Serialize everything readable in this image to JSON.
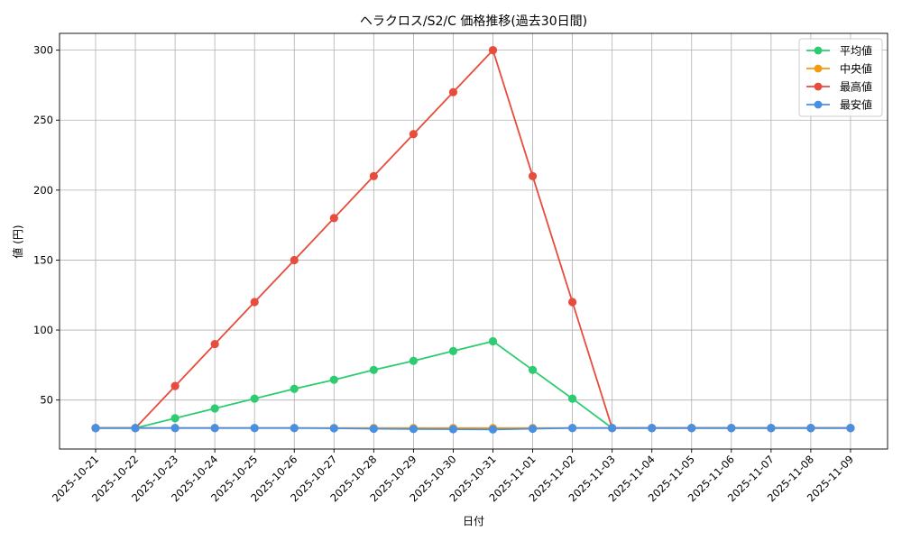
{
  "chart_data": {
    "type": "line",
    "title": "ヘラクロス/S2/C 価格推移(過去30日間)",
    "xlabel": "日付",
    "ylabel": "値 (円)",
    "ylim": [
      15,
      312
    ],
    "yticks": [
      50,
      100,
      150,
      200,
      250,
      300
    ],
    "grid": true,
    "legend_position": "top-right",
    "x": [
      "2025-10-21",
      "2025-10-22",
      "2025-10-23",
      "2025-10-24",
      "2025-10-25",
      "2025-10-26",
      "2025-10-27",
      "2025-10-28",
      "2025-10-29",
      "2025-10-30",
      "2025-10-31",
      "2025-11-01",
      "2025-11-02",
      "2025-11-03",
      "2025-11-04",
      "2025-11-05",
      "2025-11-06",
      "2025-11-07",
      "2025-11-08",
      "2025-11-09"
    ],
    "series": [
      {
        "name": "平均値",
        "color": "#2ecc71",
        "values": [
          30,
          30,
          37,
          44,
          51,
          58,
          64.5,
          71.5,
          78,
          85,
          92,
          71.5,
          51,
          30,
          30,
          30,
          30,
          30,
          30,
          30
        ]
      },
      {
        "name": "中央値",
        "color": "#f39c12",
        "values": [
          30,
          30,
          30,
          30,
          30,
          30,
          30,
          30,
          30,
          30,
          30,
          30,
          30,
          30,
          30,
          30,
          30,
          30,
          30,
          30
        ]
      },
      {
        "name": "最高値",
        "color": "#e74c3c",
        "values": [
          30,
          30,
          60,
          90,
          120,
          150,
          180,
          210,
          240,
          270,
          300,
          210,
          120,
          30,
          30,
          30,
          30,
          30,
          30,
          30
        ]
      },
      {
        "name": "最安値",
        "color": "#4a90e2",
        "values": [
          30,
          30,
          30,
          30,
          30,
          30,
          29.8,
          29.5,
          29.3,
          29.2,
          29,
          29.5,
          30,
          30,
          30,
          30,
          30,
          30,
          30,
          30
        ]
      }
    ]
  }
}
